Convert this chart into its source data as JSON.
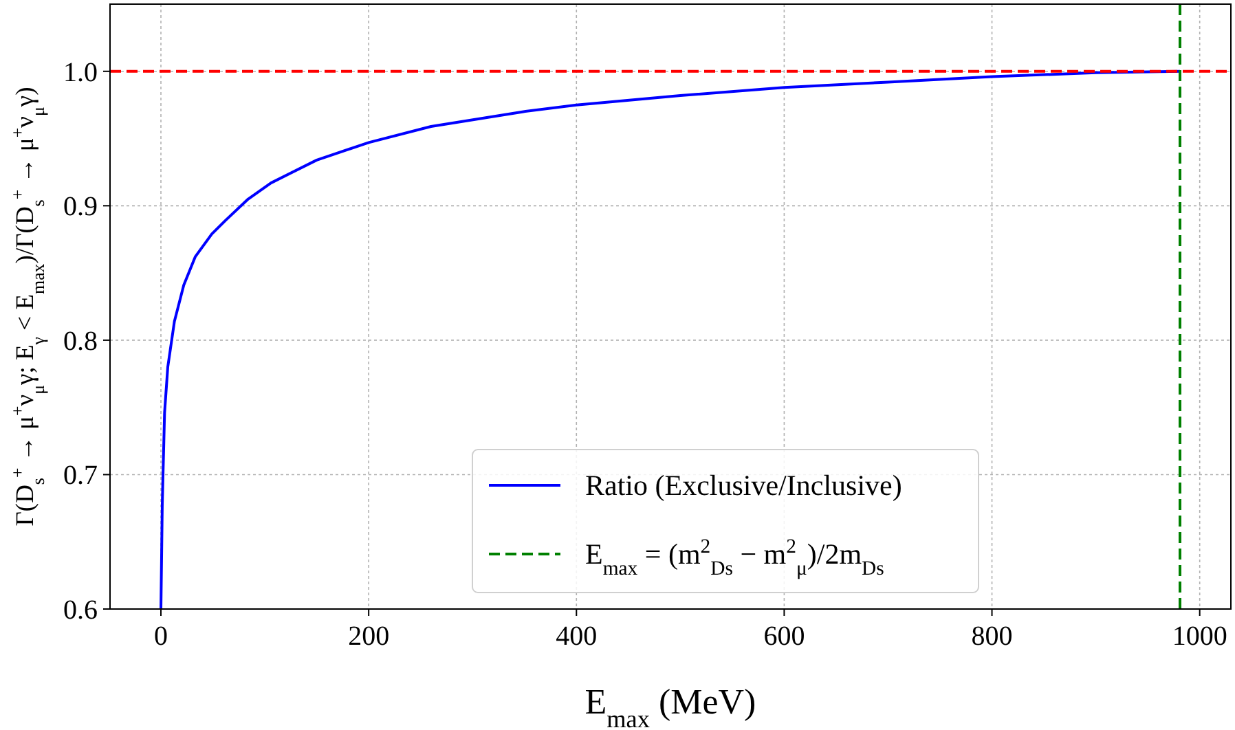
{
  "chart_data": {
    "type": "line",
    "xlabel": "E$_{max}$ (MeV)",
    "ylabel": "Γ(D$_{s}$$^{+}$ → μ$^{+}$ν$_{μ}$γ; E$_{γ}$ < E$_{max}$)/Γ(D$_{s}$$^{+}$ → μ$^{+}$ν$_{μ}$γ)",
    "xlim": [
      -49,
      1030
    ],
    "ylim": [
      0.6,
      1.05
    ],
    "xticks": [
      0,
      200,
      400,
      600,
      800,
      1000
    ],
    "yticks": [
      {
        "value": 0.6,
        "label": "0.6"
      },
      {
        "value": 0.7,
        "label": "0.7"
      },
      {
        "value": 0.8,
        "label": "0.8"
      },
      {
        "value": 0.9,
        "label": "0.9"
      },
      {
        "value": 1,
        "label": "1.0"
      }
    ],
    "grid": true,
    "legend": "bottom",
    "line_style": "solid",
    "series": [
      {
        "name": "Ratio (Exclusive/Inclusive)",
        "color": "#0000ff",
        "x": [
          0,
          1.3,
          3.5,
          6.6,
          13,
          22,
          33,
          49,
          62,
          84,
          106,
          150,
          200,
          260,
          349,
          400,
          500,
          600,
          700,
          800,
          900,
          981
        ],
        "values": [
          0.6,
          0.678,
          0.746,
          0.78,
          0.814,
          0.841,
          0.862,
          0.879,
          0.889,
          0.905,
          0.917,
          0.934,
          0.947,
          0.959,
          0.97,
          0.975,
          0.982,
          0.988,
          0.992,
          0.996,
          0.999,
          1.0
        ]
      }
    ],
    "ref_lines": [
      {
        "axis": "y",
        "value": 1.0,
        "color": "#ff0000",
        "line_style": "dashed"
      },
      {
        "axis": "x",
        "value": 981,
        "color": "#008000",
        "line_style": "dashed",
        "label": "E$_{max}$ = (m$^{2}$$_{Ds}$ − m$^{2}$$_{μ}$)/2m$_{Ds}$"
      }
    ]
  }
}
